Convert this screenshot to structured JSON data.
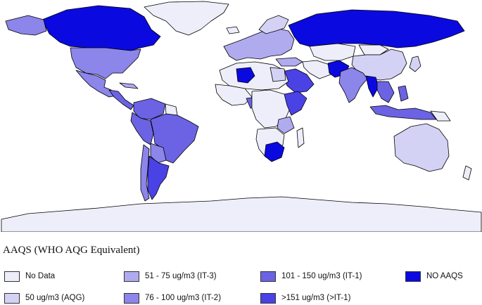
{
  "map": {
    "colors": {
      "no_data": "#eeeefa",
      "aqg_50": "#d4d2f4",
      "it3_51_75": "#b0abef",
      "it2_76_100": "#8c85ea",
      "it1_101_150": "#6b63e4",
      "gt_it1_151": "#4a42e4",
      "no_aaqs": "#0a0ae0"
    }
  },
  "legend": {
    "title": "AAQS (WHO AQG Equivalent)",
    "items": [
      {
        "label": "No Data",
        "color": "#eeeefa"
      },
      {
        "label": "51 - 75 ug/m3 (IT-3)",
        "color": "#b0abef"
      },
      {
        "label": "101 - 150 ug/m3 (IT-1)",
        "color": "#6b63e4"
      },
      {
        "label": "NO AAQS",
        "color": "#0a0ae0"
      },
      {
        "label": "50 ug/m3 (AQG)",
        "color": "#d4d2f4"
      },
      {
        "label": "76 - 100 ug/m3 (IT-2)",
        "color": "#8c85ea"
      },
      {
        "label": ">151 ug/m3 (>IT-1)",
        "color": "#4a42e4"
      }
    ]
  }
}
